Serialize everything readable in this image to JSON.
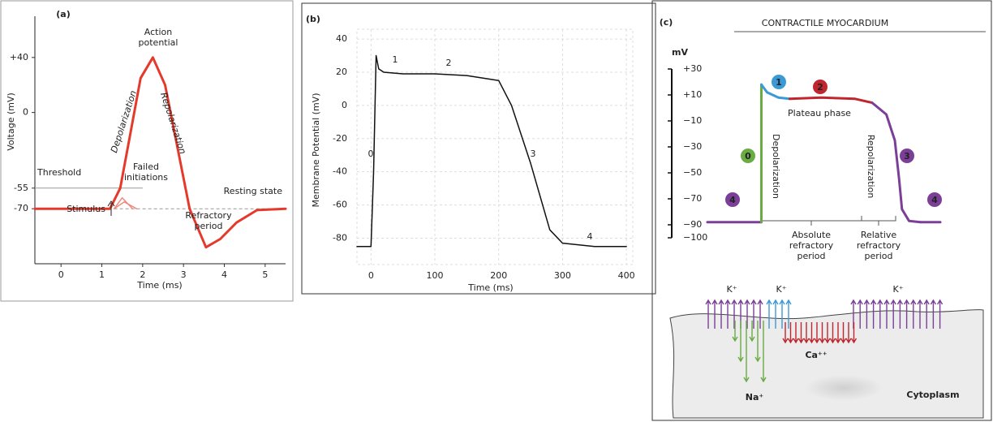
{
  "chart_data": [
    {
      "type": "line",
      "title": "(a)",
      "x_label": "Time (ms)",
      "y_label": "Voltage (mV)",
      "xlim": [
        -0.64,
        5.5
      ],
      "ylim": [
        -110,
        70
      ],
      "xticks": [
        0,
        1,
        2,
        3,
        4,
        5
      ],
      "yticks": [
        {
          "value": 40,
          "label": "+40"
        },
        0,
        -55,
        -70
      ],
      "reference_lines": [
        -55,
        -70
      ],
      "series": [
        {
          "color": "#e5392b",
          "x": [
            -0.64,
            1.2,
            1.45,
            1.7,
            1.95,
            2.25,
            2.55,
            2.85,
            3.15,
            3.55,
            3.9,
            4.3,
            4.8,
            5.5
          ],
          "values": [
            -70,
            -70,
            -55,
            -15,
            25,
            40,
            20,
            -25,
            -70,
            -98,
            -92,
            -80,
            -71,
            -70
          ]
        },
        {
          "color": "#ef8a80",
          "x": [
            1.3,
            1.5,
            1.75
          ],
          "values": [
            -70,
            -62,
            -70
          ]
        },
        {
          "color": "#ef8a80",
          "x": [
            1.3,
            1.55,
            1.85
          ],
          "values": [
            -70,
            -65,
            -70
          ]
        }
      ],
      "annotations": [
        "Action potential",
        "Depolarization",
        "Repolarization",
        "Threshold",
        "Failed initiations",
        "Resting state",
        "Stimulus",
        "Refractory period"
      ]
    },
    {
      "type": "line",
      "title": "(b)",
      "x_label": "Time (ms)",
      "y_label": "Membrane Potential (mV)",
      "xlim": [
        -22,
        410
      ],
      "ylim": [
        -92,
        42
      ],
      "xticks": [
        0,
        100,
        200,
        300,
        400
      ],
      "yticks": [
        40,
        20,
        0,
        -20,
        -40,
        -60,
        -80
      ],
      "grid": true,
      "series": [
        {
          "color": "#111111",
          "x": [
            -22,
            0,
            4,
            8,
            12,
            20,
            50,
            100,
            150,
            200,
            220,
            250,
            280,
            300,
            350,
            400
          ],
          "values": [
            -85,
            -85,
            -40,
            30,
            22,
            20,
            19,
            19,
            18,
            15,
            0,
            -35,
            -75,
            -83,
            -85,
            -85
          ]
        }
      ],
      "annotations": [
        "0",
        "1",
        "2",
        "3",
        "4"
      ]
    },
    {
      "type": "line",
      "title": "(c)",
      "subtitle": "CONTRACTILE MYOCARDIUM",
      "y_label": "mV",
      "ylim": [
        -100,
        30
      ],
      "yticks": [
        {
          "value": 30,
          "label": "+30"
        },
        {
          "value": 10,
          "label": "+10"
        },
        {
          "value": -10,
          "label": "−10"
        },
        {
          "value": -30,
          "label": "−30"
        },
        {
          "value": -50,
          "label": "−50"
        },
        {
          "value": -70,
          "label": "−70"
        },
        {
          "value": -90,
          "label": "−90"
        },
        {
          "value": -100,
          "label": "−100"
        }
      ],
      "series": [
        {
          "color": "#7b3f98",
          "x": [
            0,
            19
          ],
          "values": [
            -88,
            -88
          ]
        },
        {
          "color": "#6aab44",
          "x": [
            19,
            19
          ],
          "values": [
            -88,
            18
          ]
        },
        {
          "color": "#3b9ad6",
          "x": [
            19,
            21,
            25,
            29
          ],
          "values": [
            18,
            12,
            8,
            7
          ]
        },
        {
          "color": "#c0262d",
          "x": [
            29,
            40,
            52,
            58
          ],
          "values": [
            7,
            8,
            7,
            4
          ]
        },
        {
          "color": "#7b3f98",
          "x": [
            58,
            63,
            66,
            67.5,
            68.5,
            71,
            75
          ],
          "values": [
            4,
            -5,
            -25,
            -55,
            -78,
            -87,
            -88
          ]
        },
        {
          "color": "#7b3f98",
          "x": [
            75,
            82
          ],
          "values": [
            -88,
            -88
          ]
        }
      ],
      "phase_labels": [
        "4",
        "0",
        "1",
        "2",
        "3",
        "4"
      ],
      "annotations": [
        "Depolarization",
        "Plateau phase",
        "Repolarization",
        "Absolute refractory period",
        "Relative refractory period",
        "K⁺",
        "K⁺",
        "K⁺",
        "Na⁺",
        "Ca⁺⁺",
        "Cytoplasm"
      ]
    }
  ]
}
